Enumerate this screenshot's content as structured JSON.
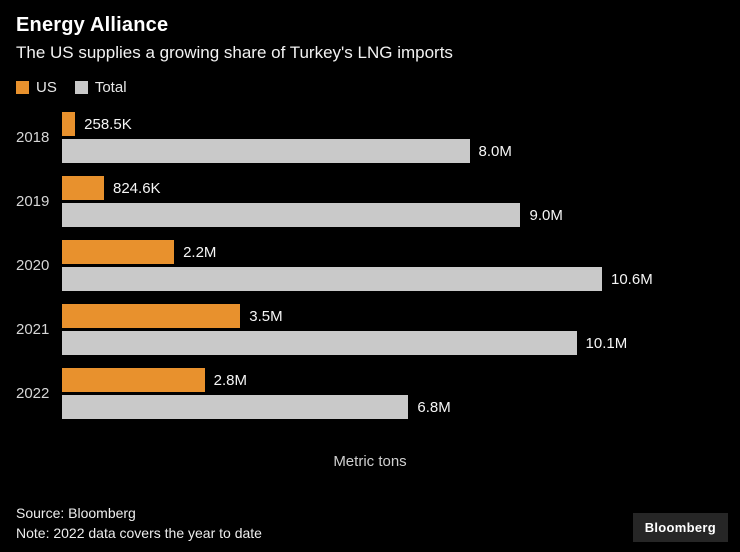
{
  "header": {
    "title": "Energy Alliance",
    "subtitle": "The US supplies a growing share of Turkey's LNG imports"
  },
  "footer": {
    "source": "Source: Bloomberg",
    "note": "Note: 2022 data covers the year to date",
    "brand": "Bloomberg"
  },
  "chart_data": {
    "type": "bar",
    "orientation": "horizontal",
    "title": "Energy Alliance",
    "subtitle": "The US supplies a growing share of Turkey's LNG imports",
    "xlabel": "Metric tons",
    "xmax": 10600000,
    "grid": false,
    "legend_position": "top-left",
    "categories": [
      "2018",
      "2019",
      "2020",
      "2021",
      "2022"
    ],
    "series": [
      {
        "name": "US",
        "color": "#e8912d",
        "values": [
          258500,
          824600,
          2200000,
          3500000,
          2800000
        ],
        "labels": [
          "258.5K",
          "824.6K",
          "2.2M",
          "3.5M",
          "2.8M"
        ]
      },
      {
        "name": "Total",
        "color": "#c9c9c9",
        "values": [
          8000000,
          9000000,
          10600000,
          10100000,
          6800000
        ],
        "labels": [
          "8.0M",
          "9.0M",
          "10.6M",
          "10.1M",
          "6.8M"
        ]
      }
    ]
  }
}
